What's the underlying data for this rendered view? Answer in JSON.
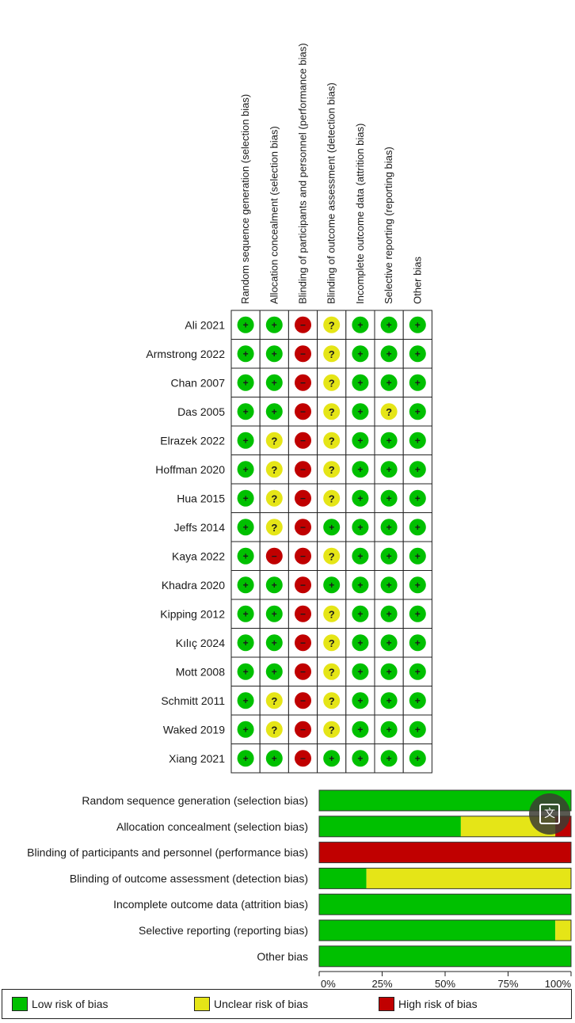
{
  "chart_data": [
    {
      "type": "table",
      "columns": [
        "Random sequence generation (selection bias)",
        "Allocation concealment (selection bias)",
        "Blinding of participants and personnel (performance bias)",
        "Blinding of outcome assessment (detection bias)",
        "Incomplete outcome data (attrition bias)",
        "Selective reporting (reporting bias)",
        "Other bias"
      ],
      "rows": [
        {
          "study": "Ali 2021",
          "ratings": [
            "low",
            "low",
            "high",
            "unclear",
            "low",
            "low",
            "low"
          ]
        },
        {
          "study": "Armstrong 2022",
          "ratings": [
            "low",
            "low",
            "high",
            "unclear",
            "low",
            "low",
            "low"
          ]
        },
        {
          "study": "Chan 2007",
          "ratings": [
            "low",
            "low",
            "high",
            "unclear",
            "low",
            "low",
            "low"
          ]
        },
        {
          "study": "Das 2005",
          "ratings": [
            "low",
            "low",
            "high",
            "unclear",
            "low",
            "unclear",
            "low"
          ]
        },
        {
          "study": "Elrazek 2022",
          "ratings": [
            "low",
            "unclear",
            "high",
            "unclear",
            "low",
            "low",
            "low"
          ]
        },
        {
          "study": "Hoffman 2020",
          "ratings": [
            "low",
            "unclear",
            "high",
            "unclear",
            "low",
            "low",
            "low"
          ]
        },
        {
          "study": "Hua 2015",
          "ratings": [
            "low",
            "unclear",
            "high",
            "unclear",
            "low",
            "low",
            "low"
          ]
        },
        {
          "study": "Jeffs 2014",
          "ratings": [
            "low",
            "unclear",
            "high",
            "low",
            "low",
            "low",
            "low"
          ]
        },
        {
          "study": "Kaya 2022",
          "ratings": [
            "low",
            "high",
            "high",
            "unclear",
            "low",
            "low",
            "low"
          ]
        },
        {
          "study": "Khadra 2020",
          "ratings": [
            "low",
            "low",
            "high",
            "low",
            "low",
            "low",
            "low"
          ]
        },
        {
          "study": "Kipping 2012",
          "ratings": [
            "low",
            "low",
            "high",
            "unclear",
            "low",
            "low",
            "low"
          ]
        },
        {
          "study": "Kılıç 2024",
          "ratings": [
            "low",
            "low",
            "high",
            "unclear",
            "low",
            "low",
            "low"
          ]
        },
        {
          "study": "Mott 2008",
          "ratings": [
            "low",
            "low",
            "high",
            "unclear",
            "low",
            "low",
            "low"
          ]
        },
        {
          "study": "Schmitt 2011",
          "ratings": [
            "low",
            "unclear",
            "high",
            "unclear",
            "low",
            "low",
            "low"
          ]
        },
        {
          "study": "Waked 2019",
          "ratings": [
            "low",
            "unclear",
            "high",
            "unclear",
            "low",
            "low",
            "low"
          ]
        },
        {
          "study": "Xiang 2021",
          "ratings": [
            "low",
            "low",
            "high",
            "low",
            "low",
            "low",
            "low"
          ]
        }
      ],
      "symbols": {
        "low": "+",
        "unclear": "?",
        "high": "−"
      }
    },
    {
      "type": "bar",
      "stacked": true,
      "orientation": "horizontal",
      "categories": [
        "Random sequence generation (selection bias)",
        "Allocation concealment (selection bias)",
        "Blinding of participants and personnel (performance bias)",
        "Blinding of outcome assessment (detection bias)",
        "Incomplete outcome data (attrition bias)",
        "Selective reporting (reporting bias)",
        "Other bias"
      ],
      "series": [
        {
          "name": "Low risk of bias",
          "values": [
            100,
            56.25,
            0,
            18.75,
            100,
            93.75,
            100
          ]
        },
        {
          "name": "Unclear risk of bias",
          "values": [
            0,
            37.5,
            0,
            81.25,
            0,
            6.25,
            0
          ]
        },
        {
          "name": "High risk of bias",
          "values": [
            0,
            6.25,
            100,
            0,
            0,
            0,
            0
          ]
        }
      ],
      "xlim": [
        0,
        100
      ],
      "xticks": [
        "0%",
        "25%",
        "50%",
        "75%",
        "100%"
      ]
    }
  ],
  "colors": {
    "low": "#00c000",
    "unclear": "#e5e517",
    "high": "#c00000"
  },
  "legend": {
    "low": "Low risk of bias",
    "unclear": "Unclear risk of bias",
    "high": "High risk of bias"
  },
  "translate_icon": "translate-icon"
}
